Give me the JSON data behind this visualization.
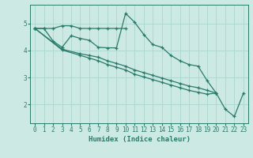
{
  "xlabel": "Humidex (Indice chaleur)",
  "bg_color": "#cde9e4",
  "grid_color": "#b0d8d2",
  "line_color": "#2a7a6a",
  "xlim": [
    -0.5,
    23.5
  ],
  "ylim": [
    1.3,
    5.7
  ],
  "yticks": [
    2,
    3,
    4,
    5
  ],
  "xticks": [
    0,
    1,
    2,
    3,
    4,
    5,
    6,
    7,
    8,
    9,
    10,
    11,
    12,
    13,
    14,
    15,
    16,
    17,
    18,
    19,
    20,
    21,
    22,
    23
  ],
  "line1_x": [
    0,
    1,
    2,
    3,
    4,
    5,
    6,
    7,
    8,
    9,
    10
  ],
  "line1_y": [
    4.82,
    4.82,
    4.82,
    4.92,
    4.92,
    4.82,
    4.82,
    4.82,
    4.82,
    4.82,
    4.82
  ],
  "line2_x": [
    0,
    1,
    2,
    3,
    4,
    5,
    6,
    7,
    8,
    9,
    10,
    11,
    12,
    13,
    14,
    15,
    16,
    17,
    18,
    19,
    20
  ],
  "line2_y": [
    4.82,
    4.82,
    4.35,
    4.12,
    4.55,
    4.45,
    4.38,
    4.12,
    4.1,
    4.1,
    5.38,
    5.05,
    4.6,
    4.22,
    4.12,
    3.82,
    3.62,
    3.48,
    3.42,
    2.88,
    2.42
  ],
  "line3_x": [
    0,
    3,
    5,
    6,
    7,
    8,
    9,
    10,
    11,
    12,
    13,
    14,
    15,
    16,
    17,
    18,
    19,
    20
  ],
  "line3_y": [
    4.82,
    4.05,
    3.88,
    3.82,
    3.75,
    3.62,
    3.52,
    3.42,
    3.28,
    3.18,
    3.08,
    2.98,
    2.88,
    2.78,
    2.68,
    2.62,
    2.52,
    2.42
  ],
  "line4_x": [
    0,
    3,
    5,
    6,
    7,
    8,
    9,
    10,
    11,
    12,
    13,
    14,
    15,
    16,
    17,
    18,
    19,
    20,
    21,
    22,
    23
  ],
  "line4_y": [
    4.82,
    4.02,
    3.82,
    3.72,
    3.62,
    3.48,
    3.38,
    3.28,
    3.12,
    3.02,
    2.92,
    2.82,
    2.72,
    2.62,
    2.52,
    2.45,
    2.38,
    2.42,
    1.82,
    1.55,
    2.42
  ]
}
